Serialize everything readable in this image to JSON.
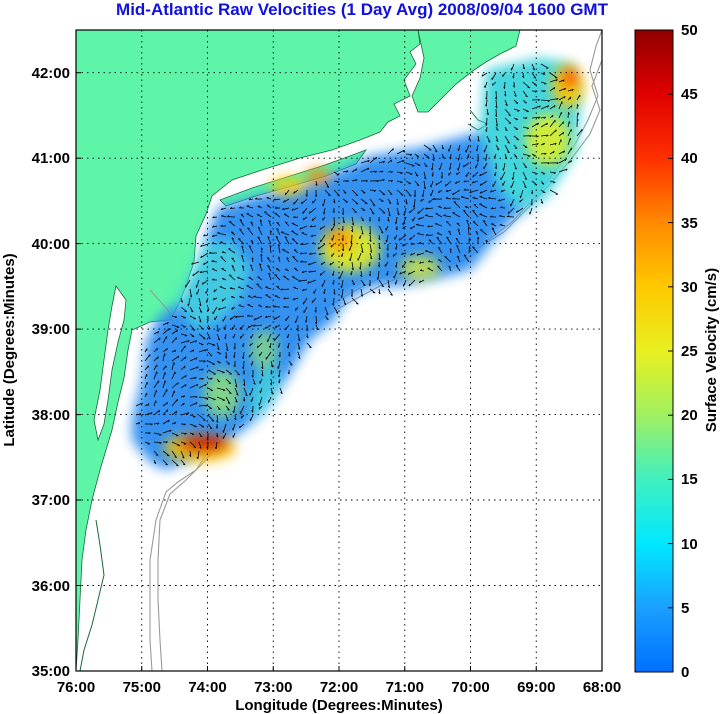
{
  "title": "Mid-Atlantic Raw Velocities (1 Day Avg) 2008/09/04 1600 GMT",
  "x_axis": {
    "label": "Longitude (Degrees:Minutes)",
    "ticks": [
      "76:00",
      "75:00",
      "74:00",
      "73:00",
      "72:00",
      "71:00",
      "70:00",
      "69:00",
      "68:00"
    ]
  },
  "y_axis": {
    "label": "Latitude (Degrees:Minutes)",
    "ticks": [
      "42:00",
      "41:00",
      "40:00",
      "39:00",
      "38:00",
      "37:00",
      "36:00",
      "35:00"
    ]
  },
  "colorbar": {
    "label": "Surface Velocity (cm/s)",
    "ticks": [
      "50",
      "45",
      "40",
      "35",
      "30",
      "25",
      "20",
      "15",
      "10",
      "5",
      "0"
    ],
    "range": [
      0,
      50
    ]
  },
  "map_extent": {
    "lon": [
      -76,
      -68
    ],
    "lat": [
      35,
      42.5
    ]
  },
  "colors": {
    "land": "#5ef5a8",
    "title": "#1010e0",
    "grid": "#000000",
    "bathymetry": "#9a9a9a"
  },
  "layers": [
    "land",
    "bathymetry-contours",
    "velocity-field",
    "current-vectors",
    "graticule"
  ]
}
